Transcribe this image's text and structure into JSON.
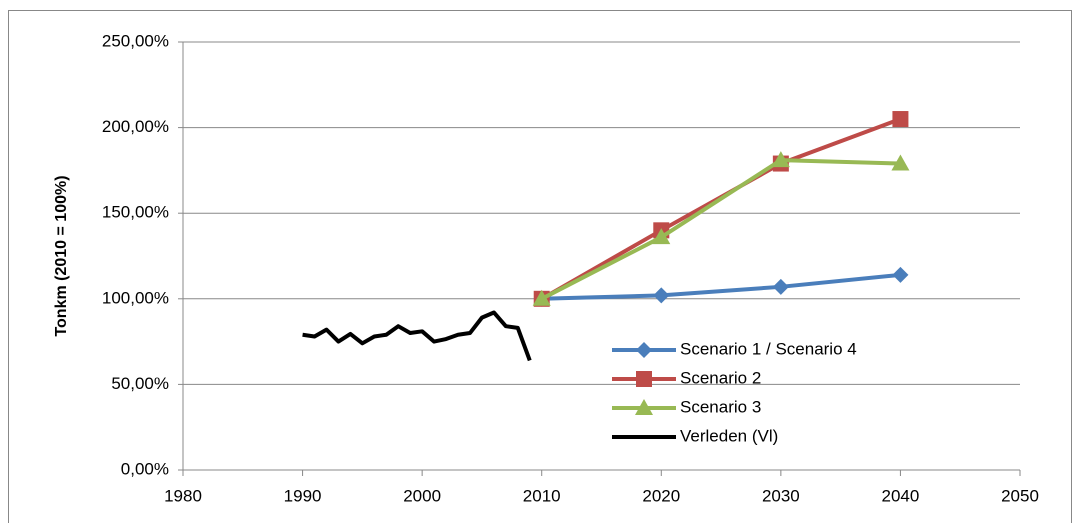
{
  "chart_data": {
    "type": "line",
    "y_label": "Tonkm (2010 = 100%)",
    "xlim": [
      1980,
      2050
    ],
    "xticks": [
      1980,
      1990,
      2000,
      2010,
      2020,
      2030,
      2040,
      2050
    ],
    "ylim": [
      0,
      250
    ],
    "yticks": [
      {
        "value": 0,
        "label": "0,00%"
      },
      {
        "value": 50,
        "label": "50,00%"
      },
      {
        "value": 100,
        "label": "100,00%"
      },
      {
        "value": 150,
        "label": "150,00%"
      },
      {
        "value": 200,
        "label": "200,00%"
      },
      {
        "value": 250,
        "label": "250,00%"
      }
    ],
    "grid": true,
    "series": [
      {
        "name": "Scenario 1 / Scenario 4",
        "color": "#4a7ebb",
        "marker": "diamond",
        "x": [
          2010,
          2020,
          2030,
          2040
        ],
        "values": [
          100,
          102,
          107,
          114
        ]
      },
      {
        "name": "Scenario 2",
        "color": "#be4b48",
        "marker": "square",
        "x": [
          2010,
          2020,
          2030,
          2040
        ],
        "values": [
          100,
          140,
          179,
          205
        ]
      },
      {
        "name": "Scenario 3",
        "color": "#98b954",
        "marker": "triangle",
        "x": [
          2010,
          2020,
          2030,
          2040
        ],
        "values": [
          100,
          136,
          181,
          179
        ]
      },
      {
        "name": "Verleden (Vl)",
        "color": "#000000",
        "x": [
          1990,
          1991,
          1992,
          1993,
          1994,
          1995,
          1996,
          1997,
          1998,
          1999,
          2000,
          2001,
          2002,
          2003,
          2004,
          2005,
          2006,
          2007,
          2008,
          2009
        ],
        "values": [
          79,
          78,
          82,
          75,
          79.5,
          74,
          78,
          79,
          84,
          80,
          81,
          75,
          76.5,
          79,
          80,
          89,
          92,
          84,
          83,
          64
        ]
      }
    ]
  }
}
